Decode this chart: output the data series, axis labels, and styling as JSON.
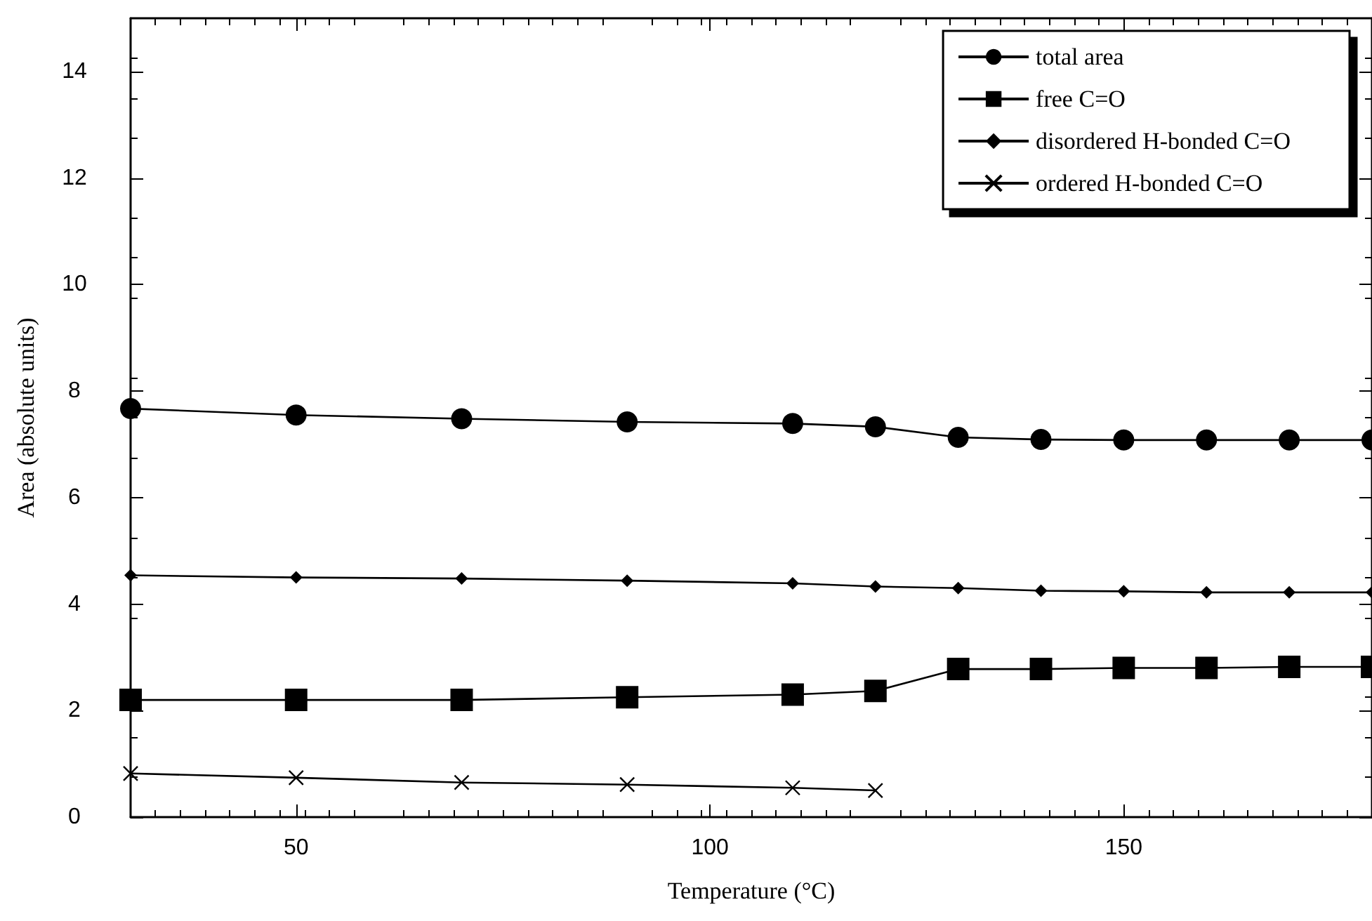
{
  "chart_data": {
    "type": "line",
    "xlabel": "Temperature (°C)",
    "ylabel": "Area (absolute units)",
    "xlim": [
      30,
      180
    ],
    "xticks": [
      50,
      100,
      150
    ],
    "ylim": [
      0,
      15
    ],
    "yticks": [
      0,
      2,
      4,
      6,
      8,
      10,
      12,
      14
    ],
    "grid": false,
    "legend": "top right",
    "line_style": "solid",
    "series": [
      {
        "name": "total area",
        "color": "#000000",
        "marker": "circle",
        "x": [
          30,
          50,
          70,
          90,
          110,
          120,
          130,
          140,
          150,
          160,
          170,
          180
        ],
        "values": [
          7.67,
          7.55,
          7.48,
          7.42,
          7.39,
          7.33,
          7.13,
          7.09,
          7.08,
          7.08,
          7.08,
          7.08
        ]
      },
      {
        "name": "free C=O",
        "color": "#000000",
        "marker": "square",
        "x": [
          30,
          50,
          70,
          90,
          110,
          120,
          130,
          140,
          150,
          160,
          170,
          180
        ],
        "values": [
          2.2,
          2.2,
          2.2,
          2.25,
          2.3,
          2.37,
          2.78,
          2.78,
          2.8,
          2.8,
          2.82,
          2.82
        ]
      },
      {
        "name": "disordered H-bonded C=O",
        "color": "#000000",
        "marker": "diamond",
        "x": [
          30,
          50,
          70,
          90,
          110,
          120,
          130,
          140,
          150,
          160,
          170,
          180
        ],
        "values": [
          4.54,
          4.5,
          4.48,
          4.44,
          4.39,
          4.33,
          4.3,
          4.25,
          4.24,
          4.22,
          4.22,
          4.22
        ]
      },
      {
        "name": "ordered H-bonded C=O",
        "color": "#000000",
        "marker": "cross",
        "x": [
          30,
          50,
          70,
          90,
          110,
          120
        ],
        "values": [
          0.82,
          0.74,
          0.65,
          0.61,
          0.55,
          0.5
        ]
      }
    ]
  }
}
